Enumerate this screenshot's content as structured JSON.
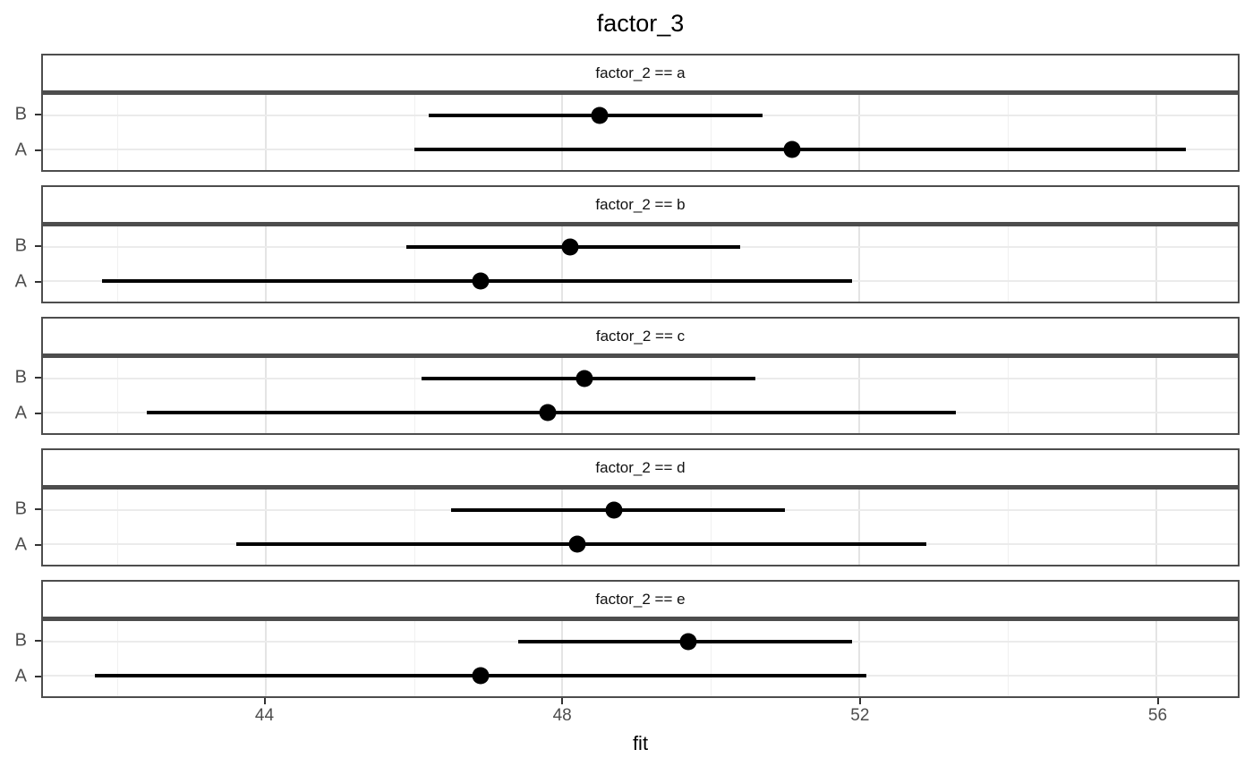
{
  "title": "factor_3",
  "axis": {
    "x_label": "fit",
    "x_domain": [
      41.0,
      57.1
    ],
    "x_major_ticks": [
      44,
      48,
      52,
      56
    ],
    "x_minor_gridlines": [
      42,
      46,
      50,
      54
    ]
  },
  "colors": {
    "panel_border": "#4d4d4d",
    "grid_major": "#e4e4e4",
    "grid_minor": "#f0f0f0",
    "grid_horizontal": "#ebebeb",
    "tick_mark": "#333333",
    "axis_text": "#4d4d4d",
    "data": "#000000",
    "background": "#ffffff"
  },
  "chart_data": {
    "type": "scatter",
    "subtype": "faceted-pointrange",
    "title": "factor_3",
    "xlabel": "fit",
    "ylabel": "",
    "xlim": [
      41.0,
      57.1
    ],
    "x_ticks": [
      44,
      48,
      52,
      56
    ],
    "x_minor": [
      42,
      46,
      50,
      54
    ],
    "grid": true,
    "y_categories_top_to_bottom": [
      "B",
      "A"
    ],
    "facets": [
      {
        "label": "factor_2 == a",
        "rows": [
          {
            "category": "B",
            "fit": 48.5,
            "lower": 46.2,
            "upper": 50.7
          },
          {
            "category": "A",
            "fit": 51.1,
            "lower": 46.0,
            "upper": 56.4
          }
        ]
      },
      {
        "label": "factor_2 == b",
        "rows": [
          {
            "category": "B",
            "fit": 48.1,
            "lower": 45.9,
            "upper": 50.4
          },
          {
            "category": "A",
            "fit": 46.9,
            "lower": 41.8,
            "upper": 51.9
          }
        ]
      },
      {
        "label": "factor_2 == c",
        "rows": [
          {
            "category": "B",
            "fit": 48.3,
            "lower": 46.1,
            "upper": 50.6
          },
          {
            "category": "A",
            "fit": 47.8,
            "lower": 42.4,
            "upper": 53.3
          }
        ]
      },
      {
        "label": "factor_2 == d",
        "rows": [
          {
            "category": "B",
            "fit": 48.7,
            "lower": 46.5,
            "upper": 51.0
          },
          {
            "category": "A",
            "fit": 48.2,
            "lower": 43.6,
            "upper": 52.9
          }
        ]
      },
      {
        "label": "factor_2 == e",
        "rows": [
          {
            "category": "B",
            "fit": 49.7,
            "lower": 47.4,
            "upper": 51.9
          },
          {
            "category": "A",
            "fit": 46.9,
            "lower": 41.7,
            "upper": 52.1
          }
        ]
      }
    ]
  }
}
